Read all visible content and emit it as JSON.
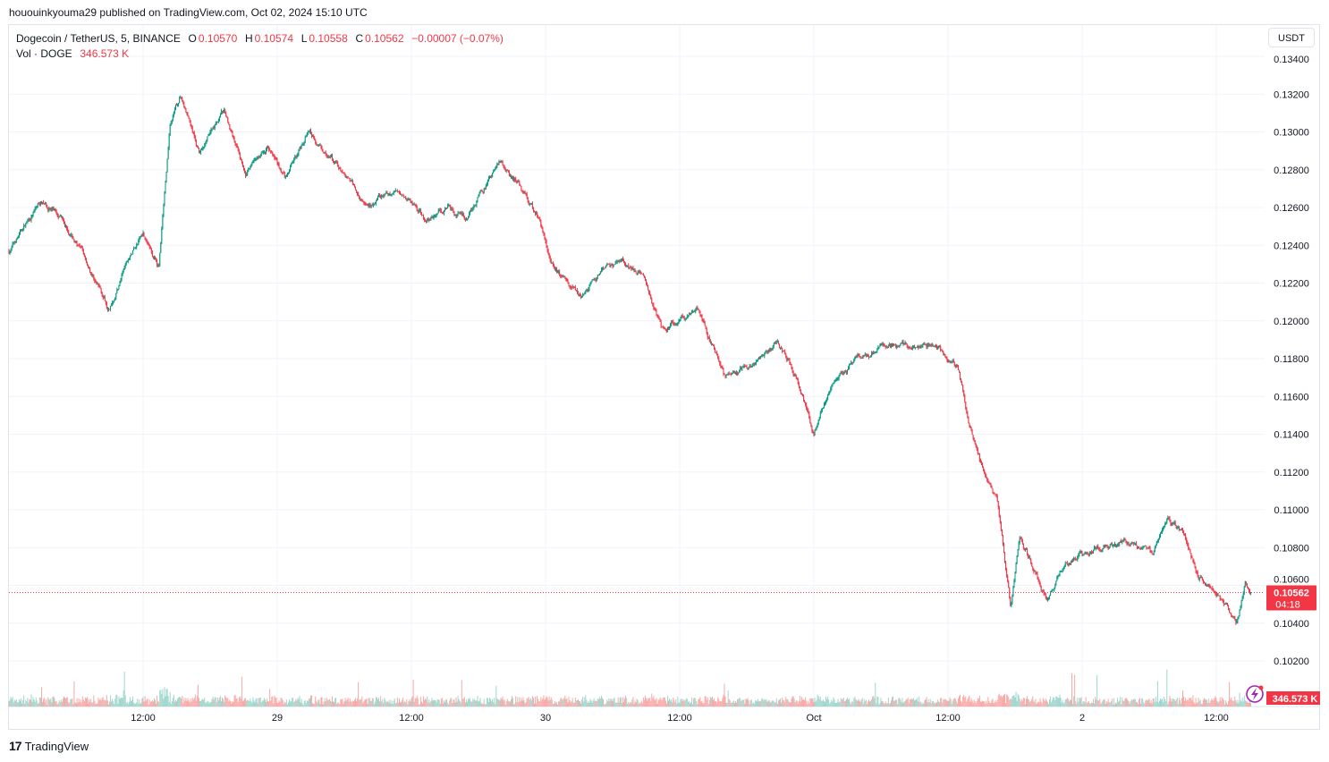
{
  "published": "hououinkyouma29 published on TradingView.com, Oct 02, 2024 15:10 UTC",
  "legend": {
    "symbol": "Dogecoin / TetherUS, 5, BINANCE",
    "o_label": "O",
    "o": "0.10570",
    "h_label": "H",
    "h": "0.10574",
    "l_label": "L",
    "l": "0.10558",
    "c_label": "C",
    "c": "0.10562",
    "change": "−0.00007 (−0.07%)",
    "vol_label": "Vol · DOGE",
    "vol": "346.573 K"
  },
  "currency_button": "USDT",
  "brand": "TradingView",
  "colors": {
    "up": "#089981",
    "down": "#f23645",
    "vol_up": "#9fd6cc",
    "vol_down": "#f7a9a7",
    "grid": "#f0f3fa",
    "price_label": "#f23645",
    "icon": "#9c27b0"
  },
  "last_price_label": {
    "price": "0.10562",
    "countdown": "04:18"
  },
  "last_volume_label": "346.573 K",
  "chart_data": {
    "type": "candlestick",
    "interval": "5 min",
    "ylim": [
      0.1015,
      0.1342
    ],
    "y_ticks": [
      "0.13400",
      "0.13200",
      "0.13000",
      "0.12800",
      "0.12600",
      "0.12400",
      "0.12200",
      "0.12000",
      "0.11800",
      "0.11600",
      "0.11400",
      "0.11200",
      "0.11000",
      "0.10800",
      "0.10600",
      "0.10400",
      "0.10200"
    ],
    "x_ticks": [
      {
        "t": "2024-09-28T12:00",
        "label": "12:00"
      },
      {
        "t": "2024-09-29T00:00",
        "label": "29"
      },
      {
        "t": "2024-09-29T12:00",
        "label": "12:00"
      },
      {
        "t": "2024-09-30T00:00",
        "label": "30"
      },
      {
        "t": "2024-09-30T12:00",
        "label": "12:00"
      },
      {
        "t": "2024-10-01T00:00",
        "label": "Oct"
      },
      {
        "t": "2024-10-01T12:00",
        "label": "12:00"
      },
      {
        "t": "2024-10-02T00:00",
        "label": "2"
      },
      {
        "t": "2024-10-02T12:00",
        "label": "12:00"
      }
    ],
    "xlim": [
      "2024-09-28T00:00",
      "2024-10-02T15:05"
    ],
    "grid": true,
    "price_path_approx": [
      [
        "2024-09-28T00:00",
        0.1237
      ],
      [
        "2024-09-28T02:48",
        0.1263
      ],
      [
        "2024-09-28T04:48",
        0.1256
      ],
      [
        "2024-09-28T07:12",
        0.1228
      ],
      [
        "2024-09-28T09:00",
        0.1207
      ],
      [
        "2024-09-28T10:24",
        0.1228
      ],
      [
        "2024-09-28T12:00",
        0.1247
      ],
      [
        "2024-09-28T13:24",
        0.1228
      ],
      [
        "2024-09-28T14:24",
        0.1304
      ],
      [
        "2024-09-28T15:24",
        0.1319
      ],
      [
        "2024-09-28T17:00",
        0.1289
      ],
      [
        "2024-09-28T19:12",
        0.1311
      ],
      [
        "2024-09-28T21:12",
        0.128
      ],
      [
        "2024-09-28T23:12",
        0.1292
      ],
      [
        "2024-09-29T00:48",
        0.1275
      ],
      [
        "2024-09-29T02:48",
        0.1301
      ],
      [
        "2024-09-29T05:36",
        0.128
      ],
      [
        "2024-09-29T08:00",
        0.1261
      ],
      [
        "2024-09-29T11:12",
        0.127
      ],
      [
        "2024-09-29T13:12",
        0.1254
      ],
      [
        "2024-09-29T15:12",
        0.1261
      ],
      [
        "2024-09-29T16:48",
        0.1254
      ],
      [
        "2024-09-29T20:00",
        0.1285
      ],
      [
        "2024-09-29T21:36",
        0.1273
      ],
      [
        "2024-09-29T23:12",
        0.1256
      ],
      [
        "2024-09-30T00:48",
        0.1228
      ],
      [
        "2024-09-30T03:12",
        0.1214
      ],
      [
        "2024-09-30T06:24",
        0.1233
      ],
      [
        "2024-09-30T08:48",
        0.1225
      ],
      [
        "2024-09-30T10:24",
        0.1195
      ],
      [
        "2024-09-30T13:36",
        0.1207
      ],
      [
        "2024-09-30T16:00",
        0.1171
      ],
      [
        "2024-09-30T18:24",
        0.1176
      ],
      [
        "2024-09-30T20:48",
        0.1188
      ],
      [
        "2024-09-30T22:24",
        0.1171
      ],
      [
        "2024-10-01T00:00",
        0.1138
      ],
      [
        "2024-10-01T01:36",
        0.1166
      ],
      [
        "2024-10-01T04:00",
        0.1181
      ],
      [
        "2024-10-01T06:48",
        0.1188
      ],
      [
        "2024-10-01T11:12",
        0.1185
      ],
      [
        "2024-10-01T12:48",
        0.1176
      ],
      [
        "2024-10-01T14:00",
        0.1143
      ],
      [
        "2024-10-01T15:12",
        0.1119
      ],
      [
        "2024-10-01T16:24",
        0.1105
      ],
      [
        "2024-10-01T17:36",
        0.1048
      ],
      [
        "2024-10-01T18:24",
        0.1086
      ],
      [
        "2024-10-01T20:48",
        0.1053
      ],
      [
        "2024-10-01T22:24",
        0.1072
      ],
      [
        "2024-10-02T01:12",
        0.1081
      ],
      [
        "2024-10-02T04:00",
        0.1083
      ],
      [
        "2024-10-02T06:24",
        0.1076
      ],
      [
        "2024-10-02T07:36",
        0.1093
      ],
      [
        "2024-10-02T09:12",
        0.1086
      ],
      [
        "2024-10-02T10:24",
        0.1065
      ],
      [
        "2024-10-02T12:00",
        0.1057
      ],
      [
        "2024-10-02T13:48",
        0.1038
      ],
      [
        "2024-10-02T14:36",
        0.1062
      ],
      [
        "2024-10-02T15:05",
        0.10562
      ]
    ]
  }
}
